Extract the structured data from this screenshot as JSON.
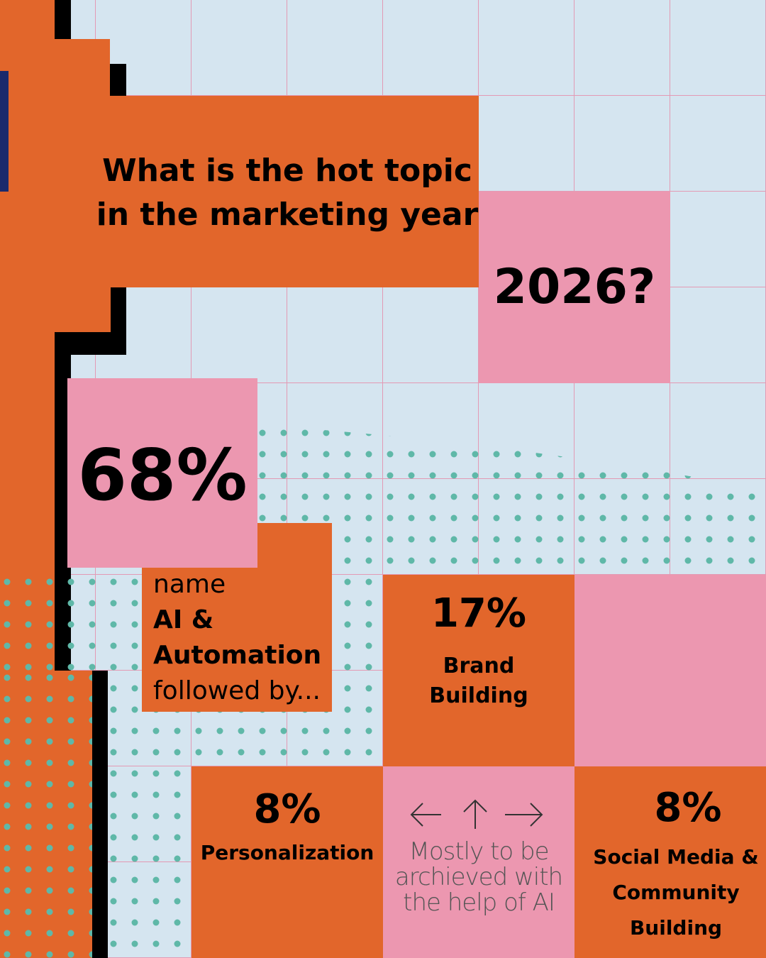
{
  "header": {
    "title_lines": [
      "What is the hot topic",
      "in the marketing year"
    ],
    "year": "2026?"
  },
  "main_stat": {
    "value": "68%",
    "lines": [
      "name",
      "AI &",
      "Automation",
      "followed by..."
    ]
  },
  "stats": [
    {
      "value": "17%",
      "label_lines": [
        "Brand",
        "Building"
      ]
    },
    {
      "value": "8%",
      "label_lines": [
        "Personalization"
      ]
    },
    {
      "value": "8%",
      "label_lines": [
        "Social Media &",
        "Community",
        "Building"
      ]
    }
  ],
  "note_lines": [
    "Mostly to be",
    "archieved with",
    "the help of AI"
  ]
}
